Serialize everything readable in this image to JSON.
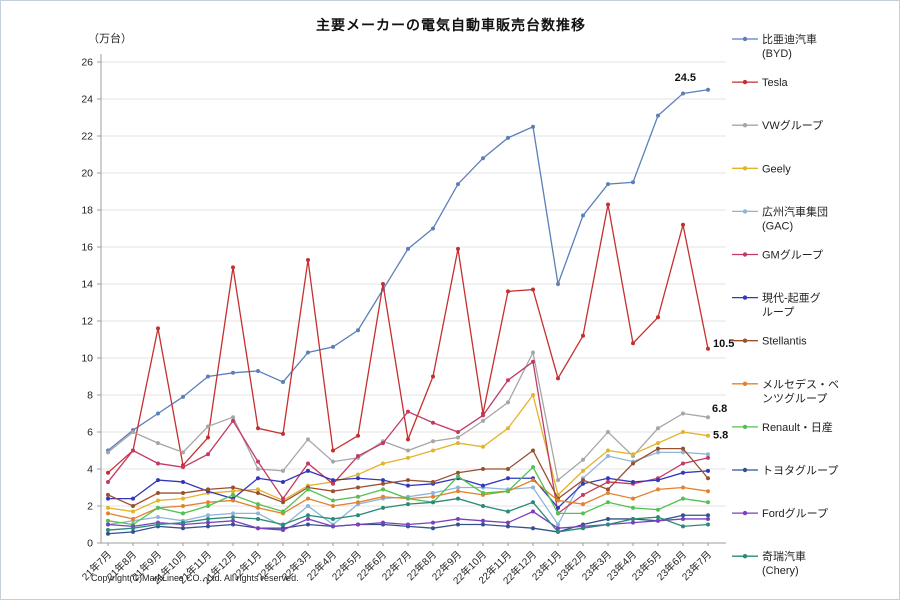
{
  "page": {
    "y_axis_unit_label": "（万台）",
    "copyright": "Copyright(C)MarkLines CO., Ltd. All rights reserved."
  },
  "chart_data": {
    "type": "line",
    "title": "主要メーカーの電気自動車販売台数推移",
    "ylabel": "万台",
    "ylim": [
      0,
      26
    ],
    "ytick_step": 2,
    "grid": true,
    "legend_position": "right",
    "categories": [
      "21年7月",
      "21年8月",
      "21年9月",
      "21年10月",
      "21年11月",
      "21年12月",
      "22年1月",
      "22年2月",
      "22年3月",
      "22年4月",
      "22年5月",
      "22年6月",
      "22年7月",
      "22年8月",
      "22年9月",
      "22年10月",
      "22年11月",
      "22年12月",
      "23年1月",
      "23年2月",
      "23年3月",
      "23年4月",
      "23年5月",
      "23年6月",
      "23年7月"
    ],
    "series": [
      {
        "name": "比亜迪汽車(BYD)",
        "legend_lines": [
          "比亜迪汽車",
          "(BYD)"
        ],
        "color": "#5b7fb9",
        "values": [
          5.0,
          6.1,
          7.0,
          7.9,
          9.0,
          9.2,
          9.3,
          8.7,
          10.3,
          10.6,
          11.5,
          13.7,
          15.9,
          17.0,
          19.4,
          20.8,
          21.9,
          22.5,
          14.0,
          17.7,
          19.4,
          19.5,
          23.1,
          24.3,
          24.5
        ],
        "end_label": "24.5",
        "label_dx": -12,
        "label_dy": -9
      },
      {
        "name": "Tesla",
        "legend_lines": [
          "Tesla"
        ],
        "color": "#c62f2f",
        "values": [
          3.8,
          5.0,
          11.6,
          4.2,
          5.7,
          14.9,
          6.2,
          5.9,
          15.3,
          5.0,
          5.8,
          14.0,
          5.6,
          9.0,
          15.9,
          7.0,
          13.6,
          13.7,
          8.9,
          11.2,
          18.3,
          10.8,
          12.2,
          17.2,
          10.5
        ],
        "end_label": "10.5",
        "label_dx": 5,
        "label_dy": -2
      },
      {
        "name": "VWグループ",
        "legend_lines": [
          "VWグループ"
        ],
        "color": "#a6a6a6",
        "values": [
          4.9,
          6.0,
          5.4,
          4.9,
          6.3,
          6.8,
          4.0,
          3.9,
          5.6,
          4.4,
          4.6,
          5.5,
          5.0,
          5.5,
          5.7,
          6.6,
          7.6,
          10.3,
          3.4,
          4.5,
          6.0,
          4.7,
          6.2,
          7.0,
          6.8
        ],
        "end_label": "6.8",
        "label_dx": 4,
        "label_dy": -5
      },
      {
        "name": "Geely",
        "legend_lines": [
          "Geely"
        ],
        "color": "#e3b32a",
        "values": [
          1.9,
          1.7,
          2.3,
          2.4,
          2.7,
          2.8,
          2.9,
          2.3,
          3.1,
          3.3,
          3.7,
          4.3,
          4.6,
          5.0,
          5.4,
          5.2,
          6.2,
          8.0,
          2.6,
          3.9,
          5.0,
          4.8,
          5.4,
          6.0,
          5.8
        ],
        "end_label": "5.8",
        "label_dx": 5,
        "label_dy": 3
      },
      {
        "name": "広州汽車集団(GAC)",
        "legend_lines": [
          "広州汽車集団",
          "(GAC)"
        ],
        "color": "#8fb4d9",
        "values": [
          1.0,
          1.2,
          1.4,
          1.2,
          1.5,
          1.6,
          1.6,
          0.9,
          2.0,
          1.0,
          2.1,
          2.4,
          2.5,
          2.7,
          3.0,
          3.0,
          2.9,
          3.0,
          1.0,
          3.5,
          4.7,
          4.4,
          4.9,
          4.9,
          4.8
        ]
      },
      {
        "name": "GMグループ",
        "legend_lines": [
          "GMグループ"
        ],
        "color": "#c23b64",
        "values": [
          3.3,
          5.0,
          4.3,
          4.1,
          4.8,
          6.6,
          4.4,
          2.4,
          4.3,
          3.2,
          4.7,
          5.4,
          7.1,
          6.5,
          6.0,
          6.9,
          8.8,
          9.8,
          1.6,
          2.6,
          3.3,
          3.2,
          3.5,
          4.3,
          4.6
        ]
      },
      {
        "name": "現代-起亜グループ",
        "legend_lines": [
          "現代-起亜グ",
          "ループ"
        ],
        "color": "#3237bd",
        "values": [
          2.4,
          2.4,
          3.4,
          3.3,
          2.8,
          2.4,
          3.5,
          3.3,
          3.9,
          3.4,
          3.5,
          3.4,
          3.1,
          3.2,
          3.5,
          3.1,
          3.5,
          3.5,
          1.9,
          3.2,
          3.5,
          3.3,
          3.4,
          3.8,
          3.9
        ]
      },
      {
        "name": "Stellantis",
        "legend_lines": [
          "Stellantis"
        ],
        "color": "#98512f",
        "values": [
          2.6,
          2.0,
          2.7,
          2.7,
          2.9,
          3.0,
          2.7,
          2.2,
          3.0,
          2.8,
          3.0,
          3.2,
          3.4,
          3.3,
          3.8,
          4.0,
          4.0,
          5.0,
          2.4,
          3.4,
          2.9,
          4.3,
          5.1,
          5.1,
          3.5
        ]
      },
      {
        "name": "メルセデス・ベンツグループ",
        "legend_lines": [
          "メルセデス・ベ",
          "ンツグループ"
        ],
        "color": "#e2822e",
        "values": [
          1.6,
          1.3,
          1.9,
          2.0,
          2.2,
          2.3,
          1.9,
          1.6,
          2.4,
          2.0,
          2.2,
          2.5,
          2.4,
          2.5,
          2.8,
          2.6,
          2.8,
          3.4,
          2.3,
          2.1,
          2.7,
          2.4,
          2.9,
          3.0,
          2.8
        ]
      },
      {
        "name": "Renault・日産",
        "legend_lines": [
          "Renault・日産"
        ],
        "color": "#52c152",
        "values": [
          1.2,
          1.0,
          1.9,
          1.6,
          2.0,
          2.6,
          2.1,
          1.7,
          2.9,
          2.3,
          2.5,
          2.9,
          2.4,
          2.2,
          3.6,
          2.7,
          2.8,
          4.1,
          1.6,
          1.6,
          2.2,
          1.9,
          1.8,
          2.4,
          2.2
        ]
      },
      {
        "name": "トヨタグループ",
        "legend_lines": [
          "トヨタグループ"
        ],
        "color": "#33518f",
        "values": [
          0.5,
          0.6,
          0.9,
          0.8,
          0.9,
          1.0,
          0.8,
          0.8,
          1.0,
          0.9,
          1.0,
          1.0,
          0.9,
          0.8,
          1.0,
          1.0,
          0.9,
          0.8,
          0.6,
          1.0,
          1.3,
          1.3,
          1.2,
          1.5,
          1.5
        ]
      },
      {
        "name": "Fordグループ",
        "legend_lines": [
          "Fordグループ"
        ],
        "color": "#7b3fbf",
        "values": [
          1.0,
          0.9,
          1.1,
          1.0,
          1.1,
          1.2,
          0.8,
          0.7,
          1.3,
          0.9,
          1.0,
          1.1,
          1.0,
          1.1,
          1.3,
          1.2,
          1.1,
          1.7,
          0.8,
          0.9,
          1.0,
          1.1,
          1.2,
          1.3,
          1.3
        ]
      },
      {
        "name": "奇瑞汽車(Chery)",
        "legend_lines": [
          "奇瑞汽車",
          "(Chery)"
        ],
        "color": "#2a8a78",
        "values": [
          0.7,
          0.8,
          1.0,
          1.1,
          1.3,
          1.4,
          1.3,
          1.0,
          1.5,
          1.3,
          1.5,
          1.9,
          2.1,
          2.2,
          2.4,
          2.0,
          1.7,
          2.2,
          0.6,
          0.8,
          1.0,
          1.3,
          1.4,
          0.9,
          1.0
        ]
      }
    ]
  }
}
